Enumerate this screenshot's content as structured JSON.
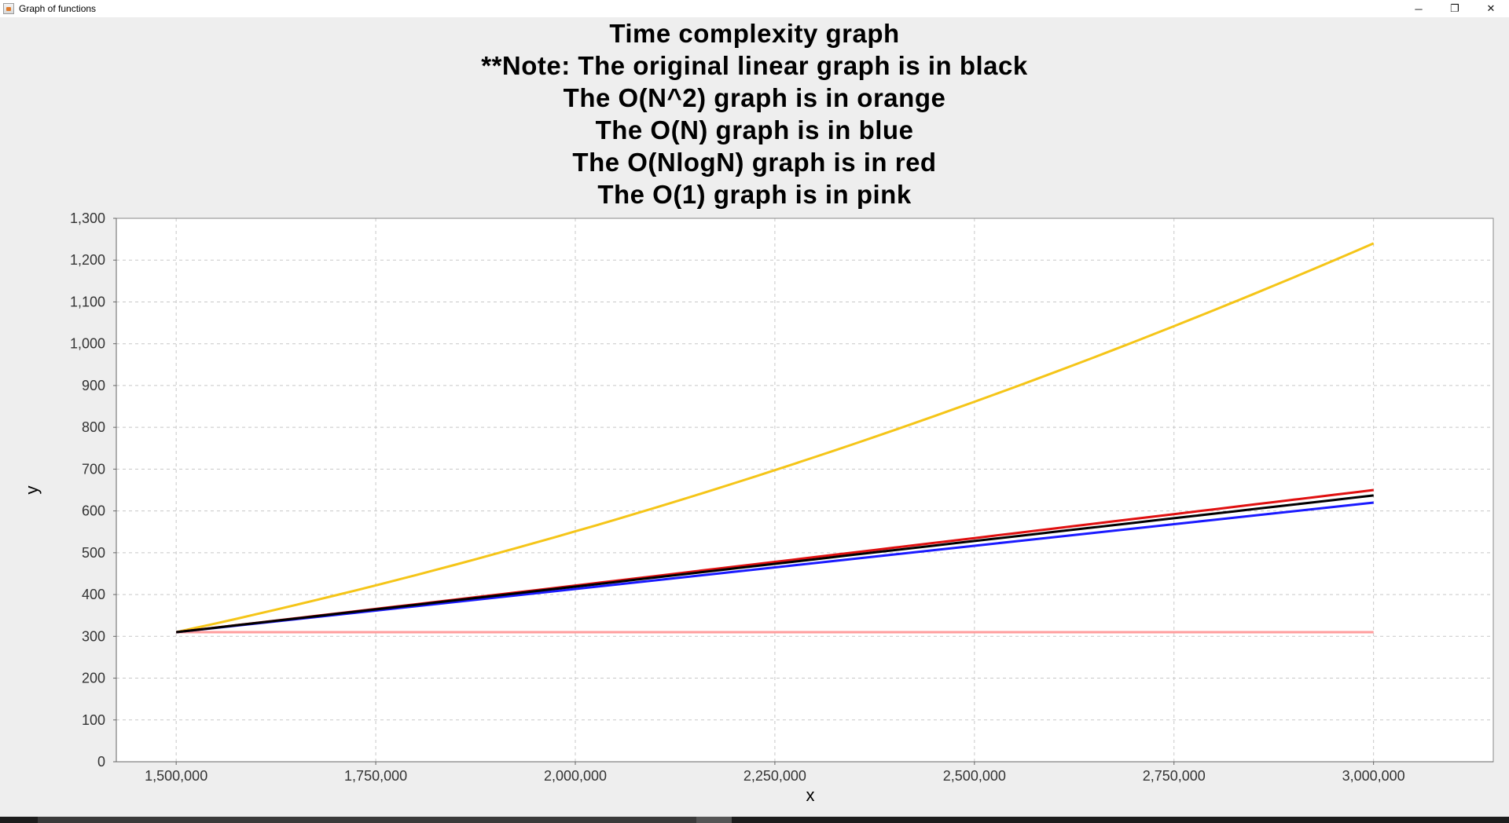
{
  "window": {
    "title": "Graph of functions",
    "minimize_glyph": "─",
    "restore_glyph": "❐",
    "close_glyph": "✕"
  },
  "chart_data": {
    "type": "line",
    "title_lines": [
      "Time complexity graph",
      "**Note: The original linear graph is in black",
      "The O(N^2) graph is in orange",
      "The O(N) graph is in blue",
      "The O(NlogN) graph is in red",
      "The O(1) graph is in pink"
    ],
    "xlabel": "x",
    "ylabel": "y",
    "xlim": [
      1425000,
      3150000
    ],
    "ylim": [
      0,
      1300
    ],
    "xticks": [
      1500000,
      1750000,
      2000000,
      2250000,
      2500000,
      2750000,
      3000000
    ],
    "xtick_labels": [
      "1,500,000",
      "1,750,000",
      "2,000,000",
      "2,250,000",
      "2,500,000",
      "2,750,000",
      "3,000,000"
    ],
    "yticks": [
      0,
      100,
      200,
      300,
      400,
      500,
      600,
      700,
      800,
      900,
      1000,
      1100,
      1200,
      1300
    ],
    "ytick_labels": [
      "0",
      "100",
      "200",
      "300",
      "400",
      "500",
      "600",
      "700",
      "800",
      "900",
      "1,000",
      "1,100",
      "1,200",
      "1,300"
    ],
    "grid": true,
    "series": [
      {
        "color": "#f5c518",
        "x": [
          1500000,
          3000000
        ],
        "y": [
          310,
          1240
        ],
        "curve": "quadratic"
      },
      {
        "color": "#ff9e9e",
        "x": [
          1500000,
          3000000
        ],
        "y": [
          310,
          310
        ]
      },
      {
        "color": "#1a1aff",
        "x": [
          1500000,
          3000000
        ],
        "y": [
          310,
          620
        ]
      },
      {
        "color": "#e01010",
        "x": [
          1500000,
          3000000
        ],
        "y": [
          310,
          650
        ],
        "curve": "nlogn"
      },
      {
        "color": "#000000",
        "x": [
          1500000,
          3000000
        ],
        "y": [
          310,
          637
        ]
      }
    ]
  }
}
